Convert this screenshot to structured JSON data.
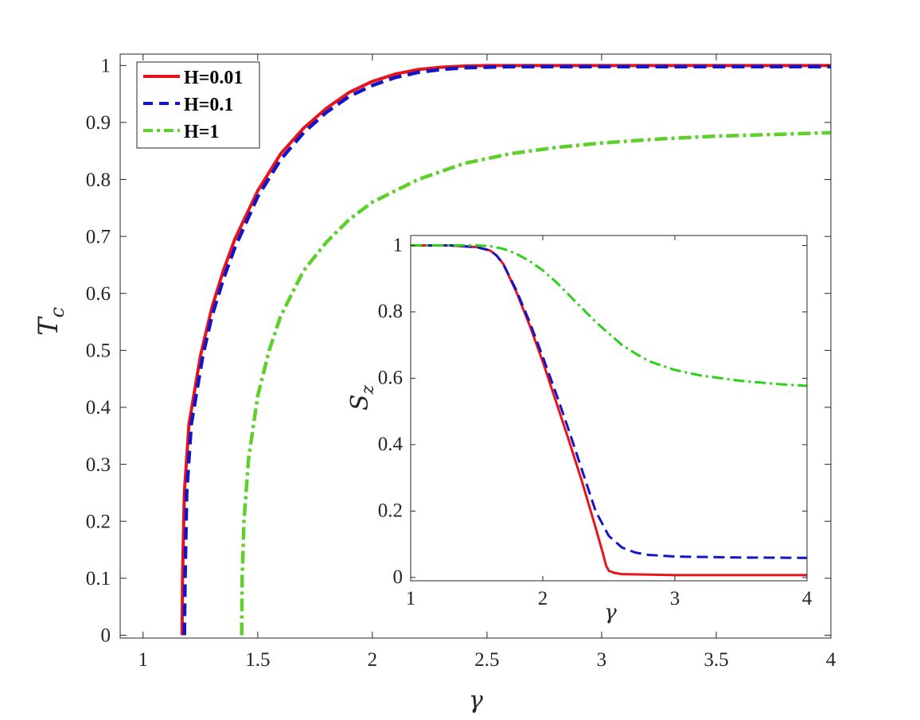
{
  "chart_data": [
    {
      "type": "line",
      "xlabel": "γ",
      "ylabel": "T",
      "ylabel_subscript": "c",
      "xlim": [
        0.9,
        4
      ],
      "ylim": [
        -0.005,
        1.02
      ],
      "xticks": [
        "1",
        "1.5",
        "2",
        "2.5",
        "3",
        "3.5",
        "4"
      ],
      "yticks": [
        "0",
        "0.1",
        "0.2",
        "0.3",
        "0.4",
        "0.5",
        "0.6",
        "0.7",
        "0.8",
        "0.9",
        "1"
      ],
      "grid": false,
      "legend": "top-left",
      "series": [
        {
          "name": "H=0.01",
          "color": "#e8141b",
          "style": "solid",
          "x": [
            1.17,
            1.172,
            1.18,
            1.2,
            1.25,
            1.3,
            1.35,
            1.4,
            1.5,
            1.6,
            1.7,
            1.8,
            1.9,
            2.0,
            2.1,
            2.2,
            2.3,
            2.4,
            2.5,
            2.6,
            3.0,
            3.5,
            4.0
          ],
          "y": [
            0,
            0.1,
            0.25,
            0.37,
            0.49,
            0.575,
            0.64,
            0.695,
            0.78,
            0.845,
            0.89,
            0.925,
            0.953,
            0.972,
            0.985,
            0.993,
            0.997,
            0.999,
            1.0,
            1.0,
            1.0,
            1.0,
            1.0
          ]
        },
        {
          "name": "H=0.1",
          "color": "#1515c8",
          "style": "dashed",
          "x": [
            1.18,
            1.183,
            1.19,
            1.21,
            1.26,
            1.3,
            1.35,
            1.4,
            1.5,
            1.6,
            1.7,
            1.8,
            1.9,
            2.0,
            2.1,
            2.2,
            2.3,
            2.4,
            2.5,
            2.6,
            3.0,
            3.5,
            4.0
          ],
          "y": [
            0,
            0.1,
            0.25,
            0.37,
            0.49,
            0.56,
            0.625,
            0.68,
            0.77,
            0.835,
            0.882,
            0.918,
            0.946,
            0.965,
            0.979,
            0.988,
            0.993,
            0.996,
            0.997,
            0.998,
            0.998,
            0.998,
            0.998
          ]
        },
        {
          "name": "H=1",
          "color": "#5fcf2c",
          "style": "dashdot",
          "x": [
            1.43,
            1.432,
            1.44,
            1.46,
            1.5,
            1.55,
            1.6,
            1.7,
            1.8,
            1.9,
            2.0,
            2.2,
            2.4,
            2.6,
            2.8,
            3.0,
            3.25,
            3.5,
            3.75,
            4.0
          ],
          "y": [
            0,
            0.1,
            0.2,
            0.31,
            0.42,
            0.5,
            0.56,
            0.64,
            0.69,
            0.73,
            0.76,
            0.8,
            0.828,
            0.845,
            0.856,
            0.864,
            0.871,
            0.876,
            0.879,
            0.882
          ]
        }
      ]
    },
    {
      "type": "line",
      "xlabel": "γ",
      "ylabel": "S",
      "ylabel_subscript": "z",
      "xlim": [
        1,
        4
      ],
      "ylim": [
        -0.01,
        1.03
      ],
      "xticks": [
        "1",
        "2",
        "3",
        "4"
      ],
      "yticks": [
        "0",
        "0.2",
        "0.4",
        "0.6",
        "0.8",
        "1"
      ],
      "grid": false,
      "series": [
        {
          "color": "#e8141b",
          "style": "solid",
          "x": [
            1.0,
            1.3,
            1.5,
            1.6,
            1.65,
            1.7,
            1.8,
            1.9,
            2.0,
            2.1,
            2.2,
            2.3,
            2.4,
            2.45,
            2.48,
            2.5,
            2.55,
            2.6,
            3.0,
            3.5,
            4.0
          ],
          "y": [
            1.0,
            1.0,
            0.995,
            0.985,
            0.97,
            0.945,
            0.86,
            0.76,
            0.65,
            0.53,
            0.41,
            0.285,
            0.15,
            0.08,
            0.035,
            0.02,
            0.013,
            0.01,
            0.007,
            0.007,
            0.007
          ]
        },
        {
          "color": "#1515c8",
          "style": "dashed",
          "x": [
            1.0,
            1.3,
            1.5,
            1.6,
            1.65,
            1.7,
            1.8,
            1.9,
            2.0,
            2.1,
            2.2,
            2.3,
            2.4,
            2.5,
            2.6,
            2.7,
            2.8,
            3.0,
            3.5,
            4.0
          ],
          "y": [
            1.0,
            1.0,
            0.995,
            0.985,
            0.97,
            0.945,
            0.865,
            0.77,
            0.665,
            0.555,
            0.44,
            0.32,
            0.2,
            0.125,
            0.09,
            0.075,
            0.068,
            0.063,
            0.06,
            0.059
          ]
        },
        {
          "color": "#2bd119",
          "style": "dashdot",
          "x": [
            1.0,
            1.3,
            1.5,
            1.6,
            1.7,
            1.8,
            1.9,
            2.0,
            2.1,
            2.2,
            2.3,
            2.4,
            2.5,
            2.6,
            2.7,
            2.8,
            3.0,
            3.2,
            3.5,
            3.8,
            4.0
          ],
          "y": [
            1.0,
            1.0,
            1.0,
            0.998,
            0.99,
            0.975,
            0.953,
            0.925,
            0.89,
            0.85,
            0.81,
            0.77,
            0.735,
            0.7,
            0.675,
            0.652,
            0.625,
            0.608,
            0.592,
            0.582,
            0.577
          ]
        }
      ]
    }
  ]
}
